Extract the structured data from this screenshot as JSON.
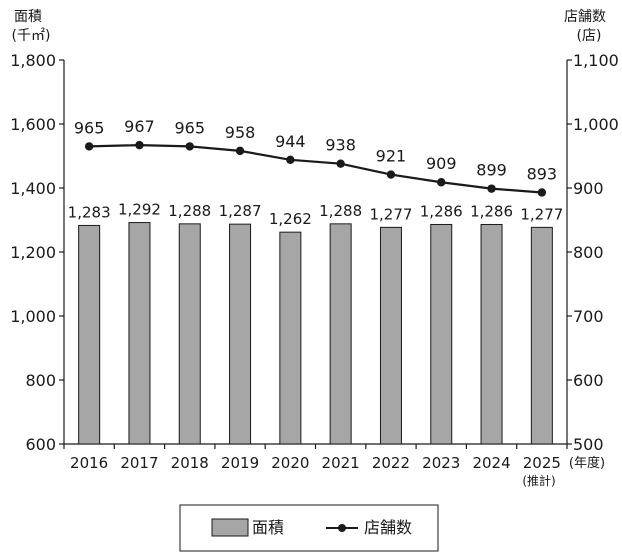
{
  "chart_data": {
    "type": "bar+line",
    "categories": [
      "2016",
      "2017",
      "2018",
      "2019",
      "2020",
      "2021",
      "2022",
      "2023",
      "2024",
      "2025"
    ],
    "category_note": "(推計)",
    "x_unit": "(年度)",
    "left_axis": {
      "label": "面積",
      "unit": "(千㎡)",
      "ylim": [
        600,
        1800
      ],
      "ticks": [
        600,
        800,
        1000,
        1200,
        1400,
        1600,
        1800
      ],
      "tick_labels": [
        "600",
        "800",
        "1,000",
        "1,200",
        "1,400",
        "1,600",
        "1,800"
      ]
    },
    "right_axis": {
      "label": "店舗数",
      "unit": "(店)",
      "ylim": [
        500,
        1100
      ],
      "ticks": [
        500,
        600,
        700,
        800,
        900,
        1000,
        1100
      ],
      "tick_labels": [
        "500",
        "600",
        "700",
        "800",
        "900",
        "1,000",
        "1,100"
      ]
    },
    "series": [
      {
        "name": "面積",
        "type": "bar",
        "axis": "left",
        "values": [
          1283,
          1292,
          1288,
          1287,
          1262,
          1288,
          1277,
          1286,
          1286,
          1277
        ],
        "labels": [
          "1,283",
          "1,292",
          "1,288",
          "1,287",
          "1,262",
          "1,288",
          "1,277",
          "1,286",
          "1,286",
          "1,277"
        ],
        "color": "#a6a6a6"
      },
      {
        "name": "店舗数",
        "type": "line",
        "axis": "right",
        "values": [
          965,
          967,
          965,
          958,
          944,
          938,
          921,
          909,
          899,
          893
        ],
        "labels": [
          "965",
          "967",
          "965",
          "958",
          "944",
          "938",
          "921",
          "909",
          "899",
          "893"
        ],
        "color": "#1a1a1a"
      }
    ],
    "legend": {
      "placement": "bottom-center",
      "items": [
        "面積",
        "店舗数"
      ]
    },
    "grid": false
  }
}
